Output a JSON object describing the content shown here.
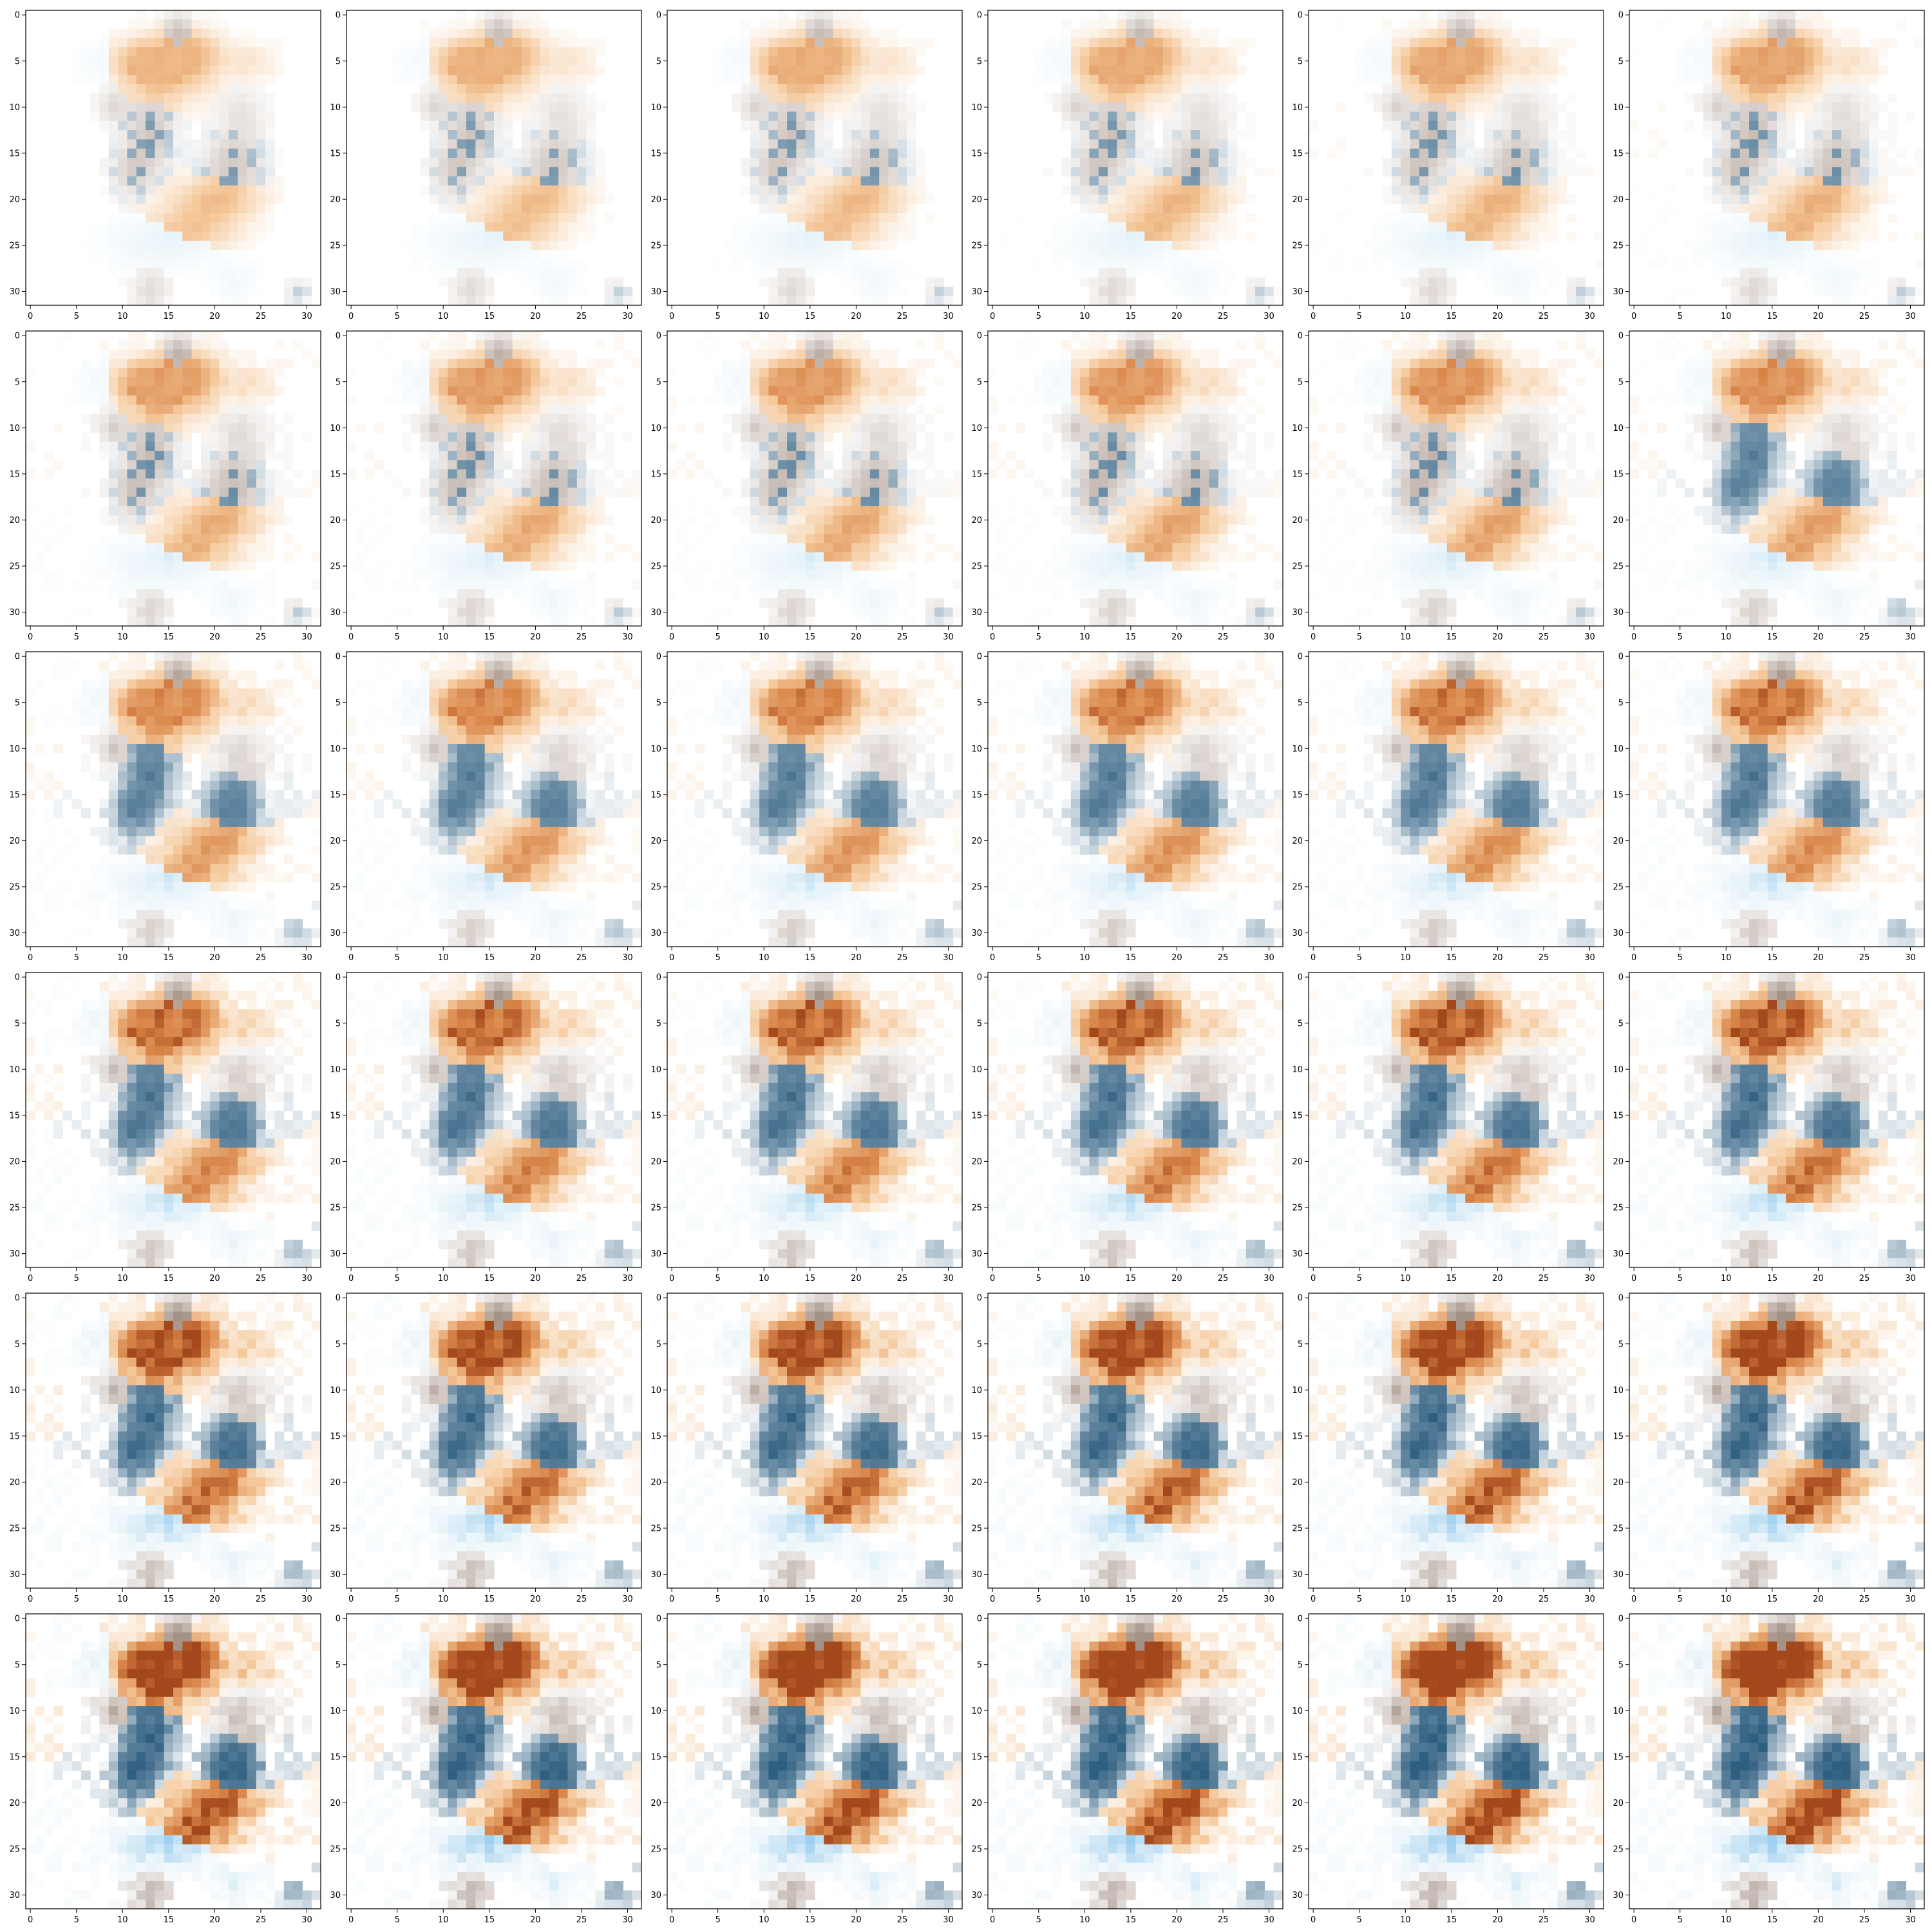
{
  "figure": {
    "rows": 6,
    "cols": 6,
    "panel_count": 36,
    "image_resolution": 32,
    "x_tick_labels": [
      "0",
      "5",
      "10",
      "15",
      "20",
      "25",
      "30"
    ],
    "y_tick_labels": [
      "0",
      "5",
      "10",
      "15",
      "20",
      "25",
      "30"
    ],
    "background_color": "#ffffff",
    "colors": {
      "orange_light": "#f5c99b",
      "orange": "#d9864a",
      "orange_dark": "#a3471c",
      "brown_gray": "#a59286",
      "steel_blue": "#6e90a8",
      "steel_blue_dark": "#2f5f80",
      "sky_blue": "#9fd0ef",
      "pale_blue": "#e8f4fa"
    },
    "description": "6x6 grid of 32x32 pixel images (matplotlib imshow) showing a progressively sharper orange/blue pattern"
  }
}
